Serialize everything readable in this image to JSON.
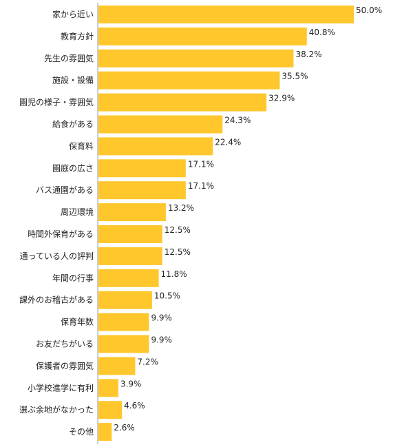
{
  "colors": {
    "bar": "#FFC72C",
    "axis": "#999999",
    "text": "#222222"
  },
  "chart_data": {
    "type": "bar",
    "orientation": "horizontal",
    "categories": [
      "家から近い",
      "教育方針",
      "先生の雰囲気",
      "施設・設備",
      "園児の様子・雰囲気",
      "給食がある",
      "保育料",
      "園庭の広さ",
      "バス通園がある",
      "周辺環境",
      "時間外保育がある",
      "通っている人の評判",
      "年間の行事",
      "課外のお稽古がある",
      "保育年数",
      "お友だちがいる",
      "保護者の雰囲気",
      "小学校進学に有利",
      "選ぶ余地がなかった",
      "その他"
    ],
    "values": [
      50.0,
      40.8,
      38.2,
      35.5,
      32.9,
      24.3,
      22.4,
      17.1,
      17.1,
      13.2,
      12.5,
      12.5,
      11.8,
      10.5,
      9.9,
      9.9,
      7.2,
      3.9,
      4.6,
      2.6
    ],
    "value_labels": [
      "50.0%",
      "40.8%",
      "38.2%",
      "35.5%",
      "32.9%",
      "24.3%",
      "22.4%",
      "17.1%",
      "17.1%",
      "13.2%",
      "12.5%",
      "12.5%",
      "11.8%",
      "10.5%",
      "9.9%",
      "9.9%",
      "7.2%",
      "3.9%",
      "4.6%",
      "2.6%"
    ],
    "xlim": [
      0,
      60
    ],
    "grid": false,
    "legend": "none"
  }
}
